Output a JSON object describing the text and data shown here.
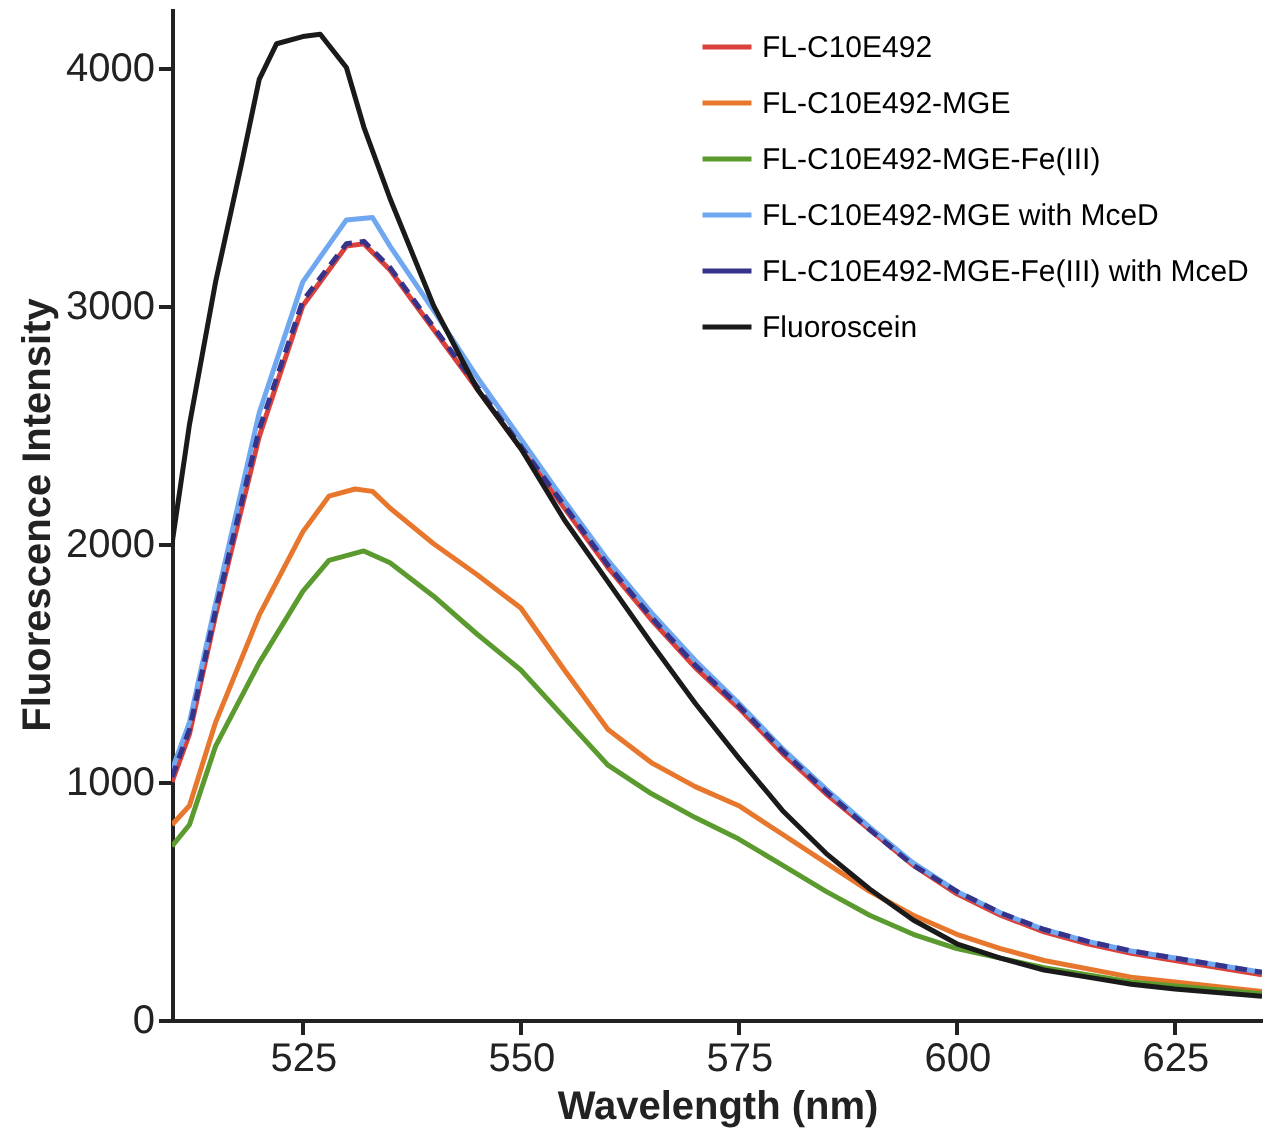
{
  "chart_data": {
    "type": "line",
    "xlabel": "Wavelength (nm)",
    "ylabel": "Fluorescence Intensity",
    "xlim": [
      510,
      635
    ],
    "ylim": [
      0,
      4250
    ],
    "xticks": [
      525,
      550,
      575,
      600,
      625
    ],
    "yticks": [
      0,
      1000,
      2000,
      3000,
      4000
    ],
    "grid": false,
    "legend": "top right",
    "marker": "none",
    "series": [
      {
        "name": "FL-C10E492",
        "color": "#d9413a",
        "line_style": "solid",
        "x": [
          510,
          512,
          515,
          520,
          525,
          530,
          532,
          535,
          540,
          545,
          550,
          555,
          560,
          565,
          570,
          575,
          580,
          585,
          590,
          595,
          600,
          605,
          610,
          615,
          620,
          625,
          635
        ],
        "values": [
          1000,
          1200,
          1700,
          2450,
          3000,
          3250,
          3260,
          3150,
          2900,
          2650,
          2400,
          2150,
          1900,
          1680,
          1480,
          1310,
          1120,
          950,
          800,
          650,
          530,
          440,
          370,
          320,
          280,
          250,
          190
        ]
      },
      {
        "name": "FL-C10E492-MGE",
        "color": "#e8772e",
        "line_style": "solid",
        "x": [
          510,
          512,
          515,
          520,
          525,
          528,
          531,
          533,
          535,
          540,
          545,
          550,
          555,
          560,
          565,
          570,
          575,
          580,
          585,
          590,
          595,
          600,
          605,
          610,
          620,
          635
        ],
        "values": [
          820,
          900,
          1250,
          1700,
          2050,
          2200,
          2230,
          2220,
          2150,
          2000,
          1870,
          1730,
          1470,
          1220,
          1080,
          980,
          900,
          780,
          660,
          540,
          440,
          360,
          300,
          250,
          180,
          120
        ]
      },
      {
        "name": "FL-C10E492-MGE-Fe(III)",
        "color": "#5a9a2e",
        "line_style": "solid",
        "x": [
          510,
          512,
          515,
          520,
          525,
          528,
          532,
          535,
          540,
          545,
          550,
          555,
          560,
          565,
          570,
          575,
          580,
          585,
          590,
          595,
          600,
          610,
          620,
          635
        ],
        "values": [
          730,
          820,
          1150,
          1500,
          1800,
          1930,
          1970,
          1920,
          1780,
          1620,
          1470,
          1270,
          1070,
          950,
          850,
          760,
          650,
          540,
          440,
          360,
          300,
          220,
          160,
          110
        ]
      },
      {
        "name": "FL-C10E492-MGE with MceD",
        "color": "#6fa8f0",
        "line_style": "solid",
        "x": [
          510,
          512,
          515,
          520,
          525,
          530,
          533,
          535,
          540,
          545,
          550,
          555,
          560,
          565,
          570,
          575,
          580,
          585,
          590,
          595,
          600,
          605,
          610,
          615,
          620,
          625,
          635
        ],
        "values": [
          1050,
          1250,
          1750,
          2550,
          3100,
          3360,
          3370,
          3250,
          2980,
          2700,
          2440,
          2180,
          1930,
          1710,
          1510,
          1330,
          1140,
          970,
          810,
          660,
          540,
          450,
          380,
          330,
          290,
          260,
          200
        ]
      },
      {
        "name": "FL-C10E492-MGE-Fe(III) with MceD",
        "color": "#35338a",
        "line_style": "dashed",
        "x": [
          510,
          512,
          515,
          520,
          525,
          530,
          532,
          535,
          540,
          545,
          550,
          555,
          560,
          565,
          570,
          575,
          580,
          585,
          590,
          595,
          600,
          605,
          610,
          615,
          620,
          625,
          635
        ],
        "values": [
          1020,
          1220,
          1720,
          2480,
          3020,
          3260,
          3270,
          3160,
          2910,
          2660,
          2410,
          2160,
          1910,
          1690,
          1490,
          1320,
          1130,
          960,
          800,
          650,
          540,
          450,
          380,
          330,
          290,
          260,
          200
        ]
      },
      {
        "name": "Fluoroscein",
        "color": "#1a1a1a",
        "line_style": "solid",
        "x": [
          510,
          512,
          515,
          518,
          520,
          522,
          525,
          527,
          530,
          532,
          535,
          540,
          545,
          550,
          555,
          560,
          565,
          570,
          575,
          580,
          585,
          590,
          595,
          600,
          605,
          610,
          615,
          620,
          625,
          635
        ],
        "values": [
          2000,
          2500,
          3100,
          3600,
          3950,
          4100,
          4130,
          4140,
          4000,
          3750,
          3450,
          3000,
          2650,
          2400,
          2100,
          1840,
          1580,
          1330,
          1100,
          880,
          700,
          550,
          420,
          320,
          260,
          210,
          180,
          150,
          130,
          100
        ]
      }
    ]
  }
}
